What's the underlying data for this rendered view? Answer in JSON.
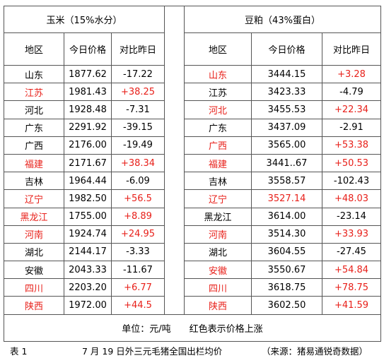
{
  "table": {
    "groups": [
      "玉米（15%水分）",
      "豆粕（43%蛋白）"
    ],
    "headers": [
      "地区",
      "今日价格",
      "对比昨日"
    ],
    "corn": [
      [
        "山东",
        "1877.62",
        "-17.22"
      ],
      [
        "江苏",
        "1981.43",
        "+38.25"
      ],
      [
        "河北",
        "1928.48",
        "-7.31"
      ],
      [
        "广东",
        "2291.92",
        "-39.15"
      ],
      [
        "广西",
        "2176.00",
        "-19.49"
      ],
      [
        "福建",
        "2171.67",
        "+38.34"
      ],
      [
        "吉林",
        "1964.44",
        "-6.09"
      ],
      [
        "辽宁",
        "1982.50",
        "+56.5"
      ],
      [
        "黑龙江",
        "1755.00",
        "+8.89"
      ],
      [
        "河南",
        "1924.74",
        "+24.95"
      ],
      [
        "湖北",
        "2144.17",
        "-3.33"
      ],
      [
        "安徽",
        "2043.33",
        "-11.67"
      ],
      [
        "四川",
        "2203.20",
        "+6.77"
      ],
      [
        "陕西",
        "1972.00",
        "+44.5"
      ]
    ],
    "meal": [
      [
        "山东",
        "3444.15",
        "+3.28"
      ],
      [
        "江苏",
        "3423.33",
        "-4.79"
      ],
      [
        "河北",
        "3455.53",
        "+22.34"
      ],
      [
        "广东",
        "3437.09",
        "-2.91"
      ],
      [
        "广西",
        "3565.00",
        "+53.38"
      ],
      [
        "福建",
        "3441..67",
        "+50.53"
      ],
      [
        "吉林",
        "3558.57",
        "-102.43"
      ],
      [
        "辽宁",
        "3527.14",
        "+48.03"
      ],
      [
        "黑龙江",
        "3614.00",
        "-23.14"
      ],
      [
        "河南",
        "3514.30",
        "+33.93"
      ],
      [
        "湖北",
        "3604.55",
        "-27.45"
      ],
      [
        "安徽",
        "3550.67",
        "+54.84"
      ],
      [
        "四川",
        "3618.75",
        "+78.75"
      ],
      [
        "陕西",
        "3602.50",
        "+41.59"
      ]
    ],
    "footer": "单位：元/吨　　红色表示价格上涨",
    "red_color": "#e8201a"
  },
  "caption": {
    "label": "表 1",
    "title": "7 月 19 日外三元毛猪全国出栏均价",
    "source": "（来源：猪易通锐奇数据）"
  }
}
